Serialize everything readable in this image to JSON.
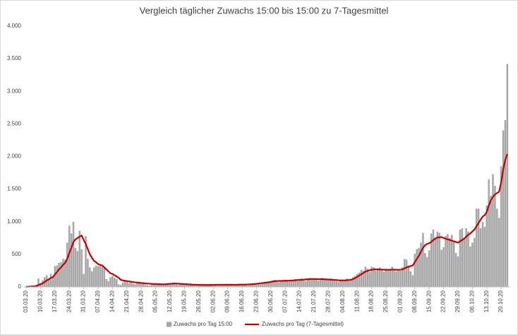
{
  "chart_data": {
    "type": "bar",
    "title": "Vergleich täglicher Zuwachs 15:00 bis 15:00 zu 7-Tagesmittel",
    "categories": [
      "03.03.20",
      null,
      null,
      null,
      null,
      null,
      null,
      "10.03.20",
      null,
      null,
      null,
      null,
      null,
      null,
      "17.03.20",
      null,
      null,
      null,
      null,
      null,
      null,
      "24.03.20",
      null,
      null,
      null,
      null,
      null,
      null,
      "31.03.20",
      null,
      null,
      null,
      null,
      null,
      null,
      "07.04.20",
      null,
      null,
      null,
      null,
      null,
      null,
      "14.04.20",
      null,
      null,
      null,
      null,
      null,
      null,
      "21.04.20",
      null,
      null,
      null,
      null,
      null,
      null,
      "28.04.20",
      null,
      null,
      null,
      null,
      null,
      null,
      "05.05.20",
      null,
      null,
      null,
      null,
      null,
      null,
      "12.05.20",
      null,
      null,
      null,
      null,
      null,
      null,
      "19.05.20",
      null,
      null,
      null,
      null,
      null,
      null,
      "26.05.20",
      null,
      null,
      null,
      null,
      null,
      null,
      "02.06.20",
      null,
      null,
      null,
      null,
      null,
      null,
      "09.06.20",
      null,
      null,
      null,
      null,
      null,
      null,
      "16.06.20",
      null,
      null,
      null,
      null,
      null,
      null,
      "23.06.20",
      null,
      null,
      null,
      null,
      null,
      null,
      "30.06.20",
      null,
      null,
      null,
      null,
      null,
      null,
      "07.07.20",
      null,
      null,
      null,
      null,
      null,
      null,
      "14.07.20",
      null,
      null,
      null,
      null,
      null,
      null,
      "21.07.20",
      null,
      null,
      null,
      null,
      null,
      null,
      "28.07.20",
      null,
      null,
      null,
      null,
      null,
      null,
      "04.08.20",
      null,
      null,
      null,
      null,
      null,
      null,
      "11.08.20",
      null,
      null,
      null,
      null,
      null,
      null,
      "18.08.20",
      null,
      null,
      null,
      null,
      null,
      null,
      "25.08.20",
      null,
      null,
      null,
      null,
      null,
      null,
      "01.09.20",
      null,
      null,
      null,
      null,
      null,
      null,
      "08.09.20",
      null,
      null,
      null,
      null,
      null,
      null,
      "15.09.20",
      null,
      null,
      null,
      null,
      null,
      null,
      "22.09.20",
      null,
      null,
      null,
      null,
      null,
      null,
      "29.09.20",
      null,
      null,
      null,
      null,
      null,
      null,
      "06.10.20",
      null,
      null,
      null,
      null,
      null,
      null,
      "13.10.20",
      null,
      null,
      null,
      null,
      null,
      null,
      "20.10.20",
      null,
      null,
      null
    ],
    "series": [
      {
        "name": "Zuwachs pro Tag 15:00",
        "type": "bar",
        "color": "#a5a5a5",
        "values": [
          5,
          10,
          15,
          10,
          20,
          30,
          130,
          60,
          100,
          150,
          180,
          130,
          200,
          150,
          320,
          330,
          370,
          380,
          430,
          420,
          680,
          940,
          820,
          1000,
          600,
          550,
          860,
          580,
          200,
          780,
          430,
          300,
          240,
          300,
          330,
          320,
          330,
          310,
          300,
          120,
          90,
          150,
          170,
          140,
          120,
          40,
          30,
          70,
          100,
          80,
          60,
          70,
          50,
          40,
          70,
          60,
          60,
          50,
          40,
          30,
          20,
          50,
          40,
          40,
          50,
          40,
          30,
          30,
          40,
          50,
          60,
          50,
          70,
          40,
          30,
          50,
          60,
          40,
          50,
          30,
          40,
          30,
          20,
          30,
          40,
          30,
          30,
          20,
          30,
          40,
          30,
          30,
          30,
          40,
          20,
          30,
          40,
          30,
          30,
          40,
          30,
          20,
          30,
          40,
          40,
          30,
          40,
          30,
          20,
          40,
          50,
          40,
          50,
          60,
          40,
          50,
          60,
          70,
          80,
          90,
          100,
          110,
          80,
          70,
          100,
          90,
          110,
          100,
          80,
          90,
          110,
          120,
          90,
          100,
          130,
          120,
          90,
          110,
          140,
          120,
          130,
          110,
          100,
          120,
          140,
          120,
          110,
          120,
          130,
          100,
          110,
          90,
          80,
          110,
          100,
          110,
          130,
          90,
          110,
          150,
          170,
          200,
          220,
          260,
          250,
          310,
          280,
          230,
          310,
          300,
          250,
          280,
          300,
          260,
          230,
          280,
          250,
          260,
          310,
          270,
          240,
          260,
          250,
          300,
          430,
          420,
          330,
          240,
          180,
          510,
          580,
          600,
          680,
          830,
          520,
          460,
          560,
          820,
          880,
          760,
          850,
          830,
          570,
          610,
          780,
          810,
          750,
          800,
          700,
          520,
          470,
          880,
          900,
          750,
          900,
          850,
          620,
          680,
          750,
          1200,
          1200,
          900,
          1000,
          920,
          1250,
          1650,
          1400,
          1730,
          1550,
          1200,
          1060,
          1850,
          2400,
          2560,
          3420
        ]
      },
      {
        "name": "Zuwachs pro Tag (7-Tagesmittel)",
        "type": "line",
        "color": "#c00000",
        "values": [
          2,
          4,
          6,
          8,
          10,
          15,
          30,
          40,
          55,
          75,
          100,
          115,
          140,
          150,
          190,
          230,
          270,
          300,
          340,
          370,
          430,
          520,
          600,
          690,
          730,
          750,
          770,
          790,
          720,
          660,
          580,
          500,
          450,
          400,
          380,
          350,
          340,
          330,
          300,
          270,
          240,
          210,
          200,
          180,
          160,
          140,
          110,
          100,
          95,
          90,
          85,
          80,
          75,
          70,
          68,
          65,
          60,
          58,
          55,
          52,
          50,
          48,
          45,
          45,
          43,
          42,
          40,
          40,
          42,
          45,
          48,
          50,
          52,
          52,
          50,
          48,
          45,
          44,
          42,
          40,
          38,
          35,
          34,
          33,
          32,
          32,
          31,
          30,
          30,
          30,
          31,
          32,
          32,
          33,
          33,
          33,
          33,
          34,
          34,
          34,
          34,
          33,
          33,
          34,
          35,
          36,
          36,
          37,
          38,
          40,
          42,
          45,
          48,
          52,
          56,
          60,
          64,
          68,
          72,
          78,
          84,
          88,
          90,
          92,
          92,
          94,
          95,
          95,
          96,
          98,
          100,
          103,
          106,
          108,
          110,
          112,
          115,
          118,
          120,
          122,
          122,
          121,
          120,
          120,
          119,
          118,
          116,
          114,
          112,
          110,
          108,
          105,
          102,
          100,
          100,
          101,
          103,
          106,
          110,
          120,
          135,
          155,
          175,
          195,
          215,
          235,
          245,
          255,
          262,
          268,
          270,
          270,
          268,
          266,
          264,
          262,
          262,
          264,
          266,
          266,
          264,
          262,
          265,
          270,
          285,
          300,
          310,
          320,
          330,
          380,
          430,
          480,
          540,
          600,
          640,
          660,
          670,
          690,
          720,
          740,
          760,
          760,
          765,
          750,
          740,
          730,
          720,
          710,
          700,
          690,
          680,
          700,
          720,
          740,
          770,
          800,
          820,
          850,
          880,
          930,
          980,
          1030,
          1080,
          1100,
          1150,
          1250,
          1330,
          1380,
          1420,
          1440,
          1460,
          1600,
          1800,
          1950,
          2040
        ]
      }
    ],
    "ylim": [
      0,
      4000
    ],
    "yticks": [
      0,
      500,
      {
        "value": 1000,
        "label": "1.000"
      },
      {
        "value": 1500,
        "label": "1.500"
      },
      {
        "value": 2000,
        "label": "2.000"
      },
      {
        "value": 2500,
        "label": "2.500"
      },
      {
        "value": 3000,
        "label": "3.000"
      },
      {
        "value": 3500,
        "label": "3.500"
      },
      {
        "value": 4000,
        "label": "4.000"
      }
    ],
    "grid": false,
    "legend": "bottom"
  }
}
